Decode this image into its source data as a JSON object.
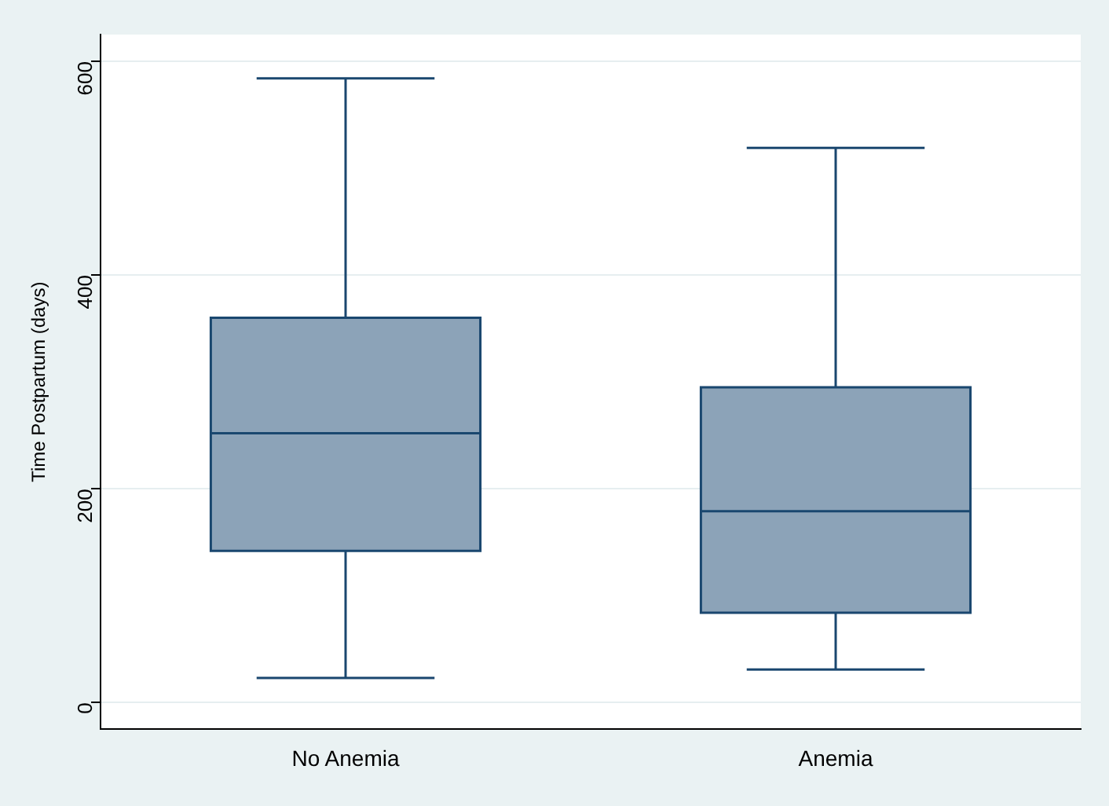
{
  "chart_data": {
    "type": "box",
    "ylabel": "Time Postpartum (days)",
    "categories": [
      "No Anemia",
      "Anemia"
    ],
    "boxes": [
      {
        "low": 23,
        "q1": 142,
        "median": 252,
        "q3": 360,
        "high": 584
      },
      {
        "low": 31,
        "q1": 84,
        "median": 179,
        "q3": 295,
        "high": 519
      }
    ],
    "color": "#8ca3b8",
    "ylim": [
      -25,
      625
    ],
    "yticks": [
      0,
      200,
      400,
      600
    ],
    "grid": "y",
    "legend": false
  }
}
